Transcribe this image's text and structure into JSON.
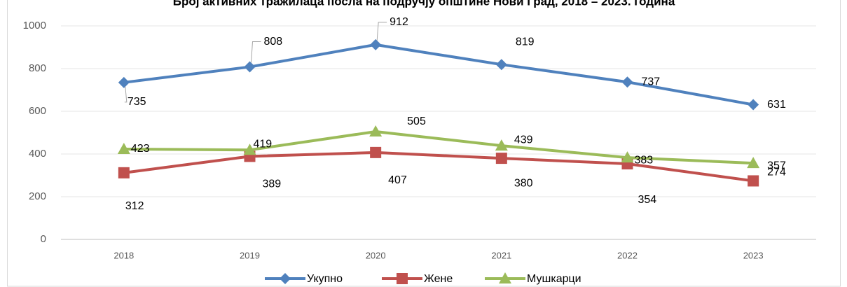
{
  "chart_data": {
    "type": "line",
    "title": "Број активних тражилаца посла на подручју општине Нови Град, 2018 – 2023. година",
    "categories": [
      "2018",
      "2019",
      "2020",
      "2021",
      "2022",
      "2023"
    ],
    "series": [
      {
        "name": "Укупно",
        "color": "#4f81bd",
        "marker": "diamond",
        "values": [
          735,
          808,
          912,
          819,
          737,
          631
        ]
      },
      {
        "name": "Жене",
        "color": "#c0504d",
        "marker": "square",
        "values": [
          312,
          389,
          407,
          380,
          354,
          274
        ]
      },
      {
        "name": "Мушкарци",
        "color": "#9bbb59",
        "marker": "triangle",
        "values": [
          423,
          419,
          505,
          439,
          383,
          357
        ]
      }
    ],
    "ylim": [
      0,
      1000
    ],
    "yticks": [
      0,
      200,
      400,
      600,
      800,
      1000
    ],
    "grid": true,
    "legend": "bottom"
  }
}
